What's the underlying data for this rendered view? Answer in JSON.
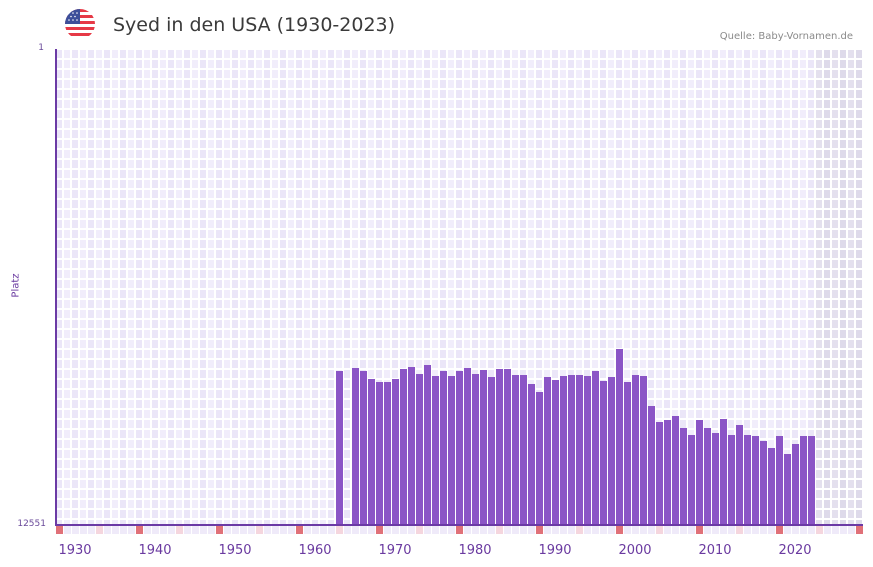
{
  "header": {
    "title": "Syed in den USA (1930-2023)",
    "source": "Quelle: Baby-Vornamen.de",
    "flag_icon": "us-flag-icon"
  },
  "colors": {
    "bar": "#8b55c6",
    "axis": "#6b3aa5",
    "grid_a": "#f1edfb",
    "grid_b": "#ebe6f8",
    "shade_a": "#e4e0ee",
    "shade_b": "#dedaea",
    "marker_decade": "#e07078",
    "marker_half": "#f5d6de",
    "marker_plain": "#efeaf9"
  },
  "chart_data": {
    "type": "bar",
    "title": "Syed in den USA (1930-2023)",
    "xlabel": "",
    "ylabel": "Platz",
    "y_axis_inverted": true,
    "ylim": [
      1,
      12551
    ],
    "y_ticks": [
      "1",
      "12551"
    ],
    "x_range": [
      1928,
      2028
    ],
    "x_ticks": [
      "1930",
      "1940",
      "1950",
      "1960",
      "1970",
      "1980",
      "1990",
      "2000",
      "2010",
      "2020"
    ],
    "shaded_from_year": 2023,
    "grid": true,
    "legend": "none",
    "series": [
      {
        "name": "Platz",
        "x": [
          1963,
          1965,
          1966,
          1967,
          1968,
          1969,
          1970,
          1971,
          1972,
          1973,
          1974,
          1975,
          1976,
          1977,
          1978,
          1979,
          1980,
          1981,
          1982,
          1983,
          1984,
          1985,
          1986,
          1987,
          1988,
          1989,
          1990,
          1991,
          1992,
          1993,
          1994,
          1995,
          1996,
          1997,
          1998,
          1999,
          2000,
          2001,
          2002,
          2003,
          2004,
          2005,
          2006,
          2007,
          2008,
          2009,
          2010,
          2011,
          2012,
          2013,
          2014,
          2015,
          2016,
          2017,
          2018,
          2019,
          2020,
          2021,
          2022
        ],
        "values": [
          8490,
          8410,
          8490,
          8700,
          8780,
          8780,
          8700,
          8440,
          8380,
          8570,
          8330,
          8620,
          8490,
          8620,
          8490,
          8410,
          8570,
          8460,
          8650,
          8440,
          8440,
          8600,
          8600,
          8830,
          9040,
          8650,
          8730,
          8620,
          8600,
          8600,
          8620,
          8490,
          8750,
          8650,
          7910,
          8780,
          8600,
          8620,
          9410,
          9830,
          9780,
          9670,
          9990,
          10170,
          9780,
          9990,
          10120,
          9750,
          10170,
          9910,
          10170,
          10200,
          10330,
          10510,
          10200,
          10670,
          10410,
          10200,
          10200
        ]
      }
    ]
  }
}
